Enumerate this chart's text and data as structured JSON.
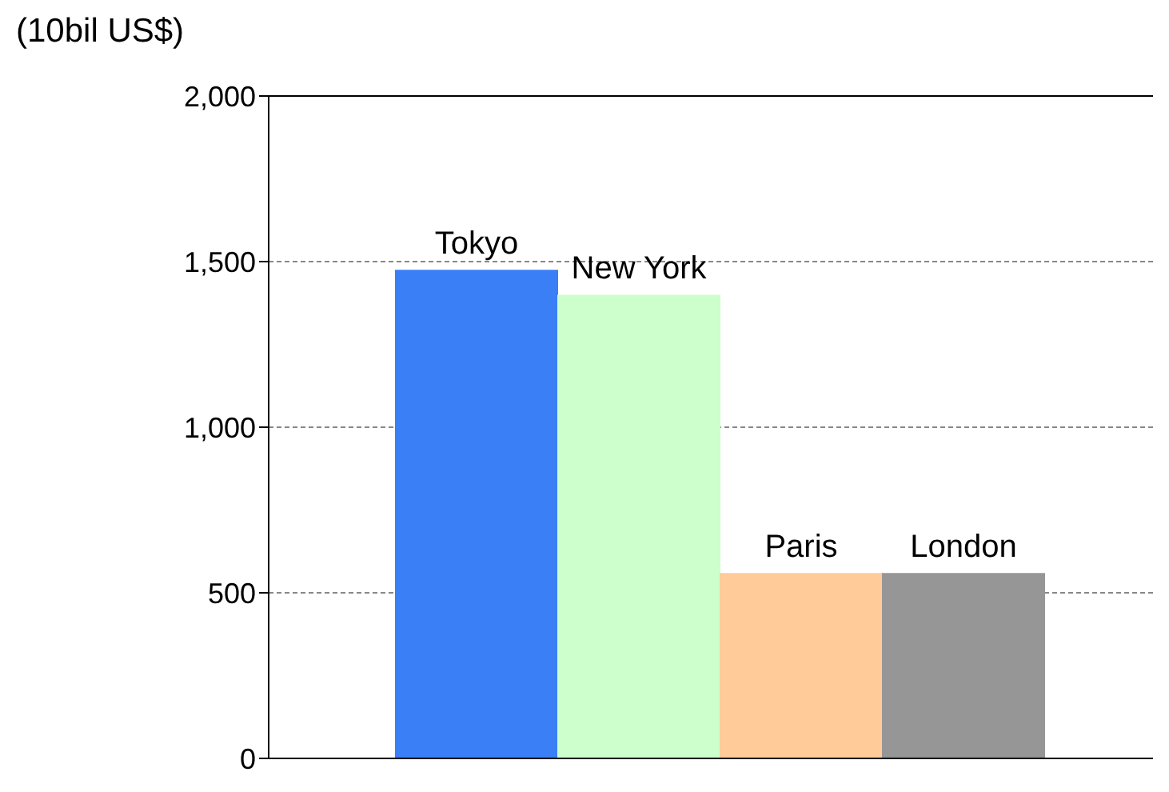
{
  "chart_data": {
    "type": "bar",
    "ylabel": "(10bil US$)",
    "categories": [
      "Tokyo",
      "New York",
      "Paris",
      "London"
    ],
    "values": [
      1475,
      1400,
      560,
      560
    ],
    "colors": [
      "#3a7ff5",
      "#ccffcc",
      "#ffcc99",
      "#969696"
    ],
    "ylim": [
      0,
      2000
    ],
    "yticks": [
      {
        "value": 0,
        "label": "0"
      },
      {
        "value": 500,
        "label": "500"
      },
      {
        "value": 1000,
        "label": "1,000"
      },
      {
        "value": 1500,
        "label": "1,500"
      },
      {
        "value": 2000,
        "label": "2,000"
      }
    ],
    "grid": "y",
    "tick_labels": "y"
  }
}
